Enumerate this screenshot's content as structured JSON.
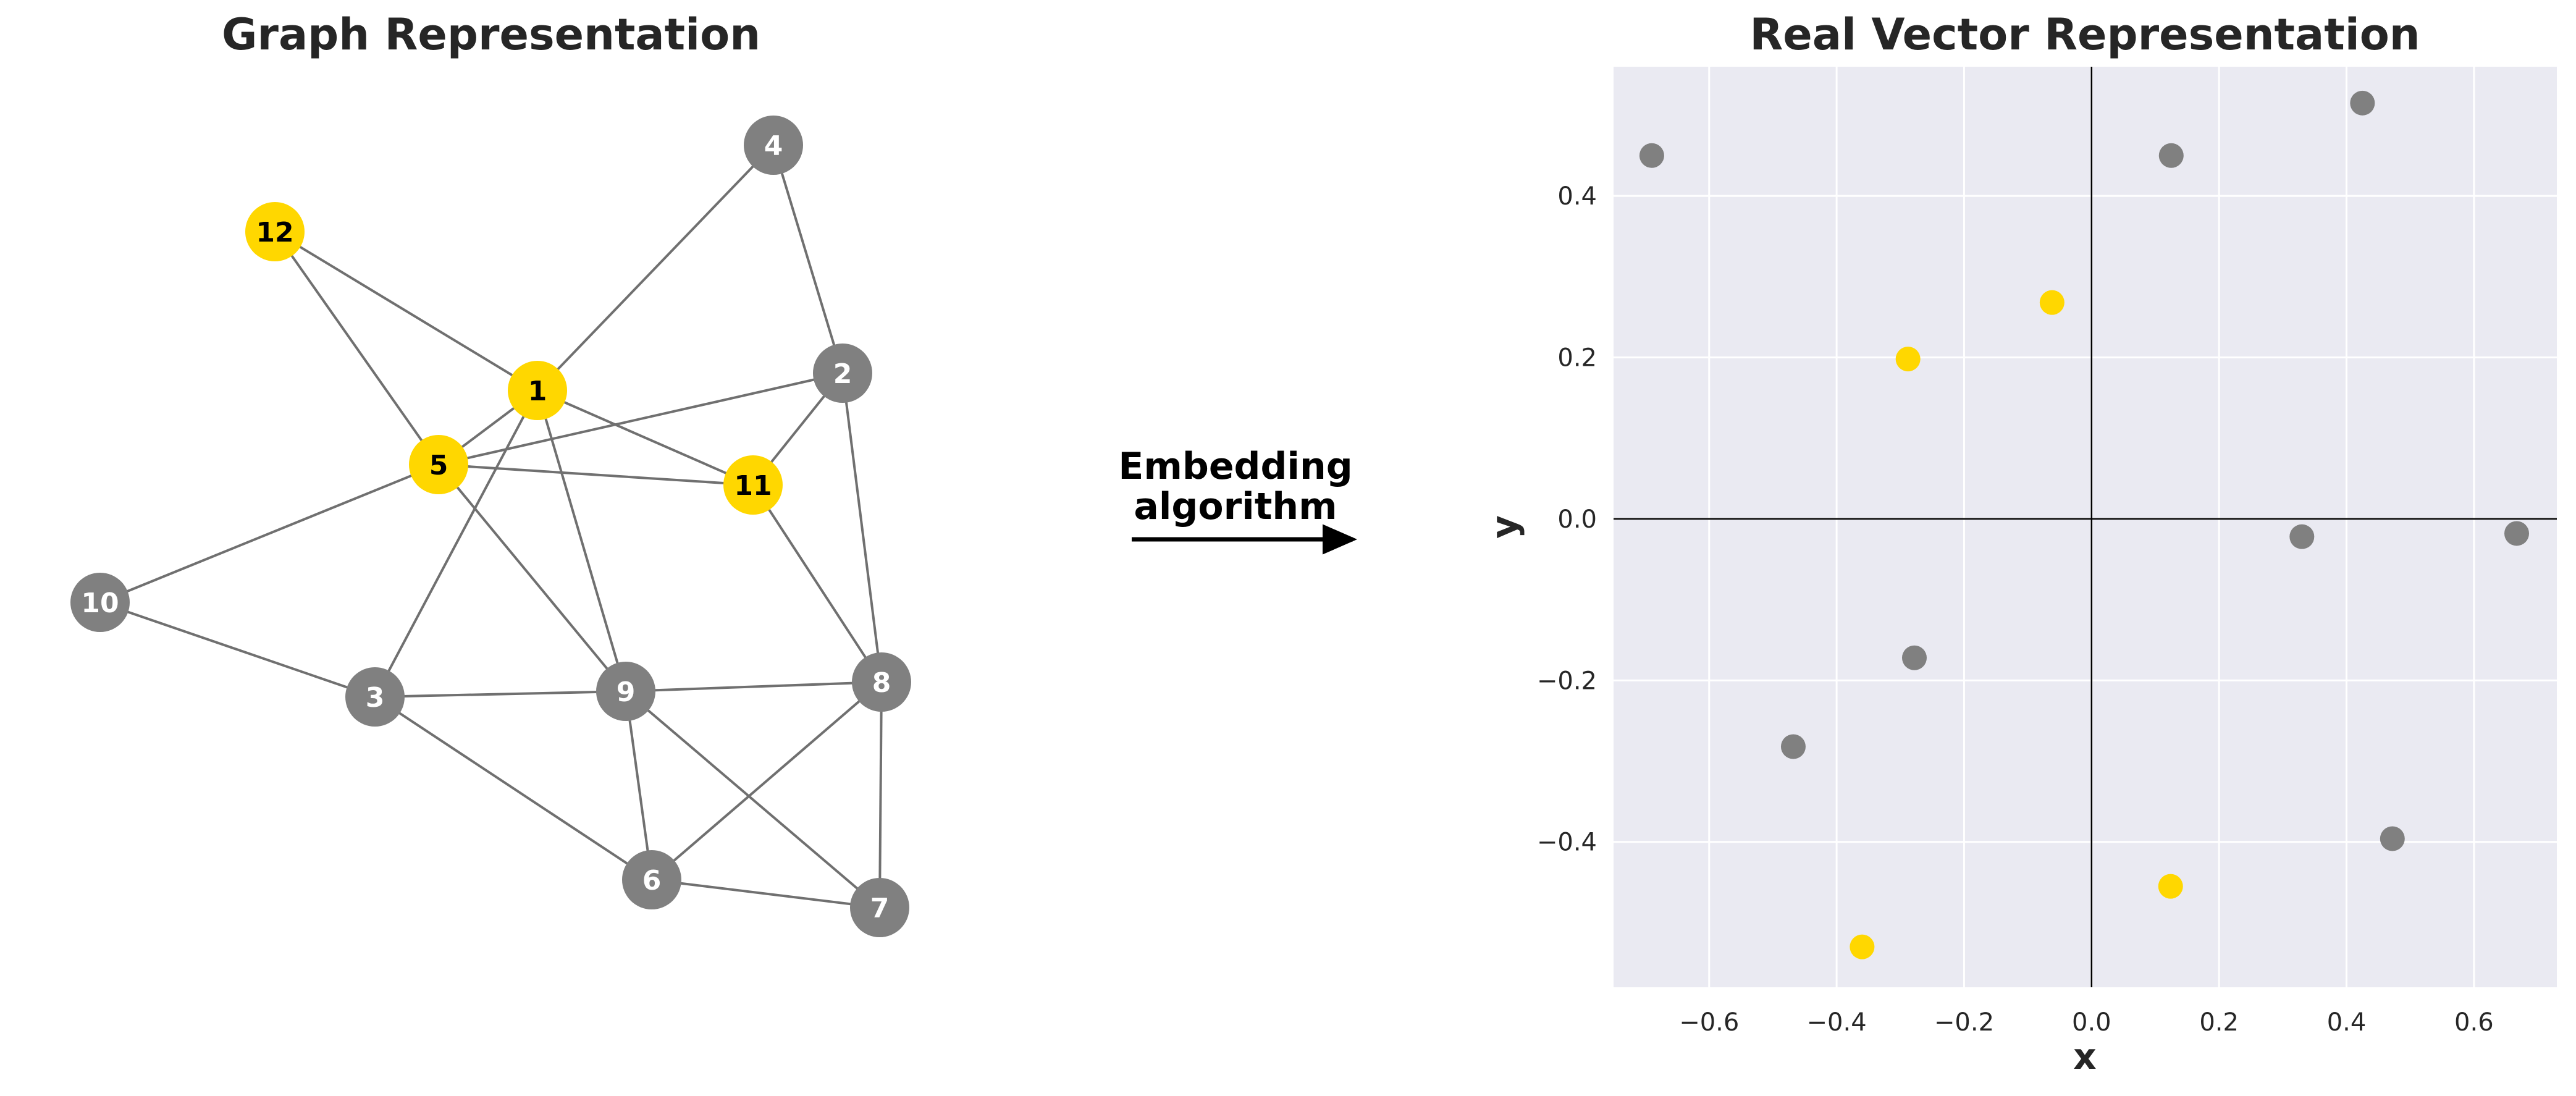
{
  "graph_panel": {
    "title": "Graph Representation",
    "nodes": [
      {
        "id": "1",
        "highlighted": true
      },
      {
        "id": "2",
        "highlighted": false
      },
      {
        "id": "3",
        "highlighted": false
      },
      {
        "id": "4",
        "highlighted": false
      },
      {
        "id": "5",
        "highlighted": true
      },
      {
        "id": "6",
        "highlighted": false
      },
      {
        "id": "7",
        "highlighted": false
      },
      {
        "id": "8",
        "highlighted": false
      },
      {
        "id": "9",
        "highlighted": false
      },
      {
        "id": "10",
        "highlighted": false
      },
      {
        "id": "11",
        "highlighted": true
      },
      {
        "id": "12",
        "highlighted": true
      }
    ],
    "edges": [
      [
        "12",
        "1"
      ],
      [
        "12",
        "5"
      ],
      [
        "4",
        "1"
      ],
      [
        "4",
        "2"
      ],
      [
        "1",
        "5"
      ],
      [
        "1",
        "11"
      ],
      [
        "1",
        "3"
      ],
      [
        "1",
        "9"
      ],
      [
        "5",
        "2"
      ],
      [
        "5",
        "11"
      ],
      [
        "5",
        "10"
      ],
      [
        "5",
        "9"
      ],
      [
        "2",
        "11"
      ],
      [
        "2",
        "8"
      ],
      [
        "11",
        "8"
      ],
      [
        "10",
        "3"
      ],
      [
        "3",
        "9"
      ],
      [
        "3",
        "6"
      ],
      [
        "9",
        "8"
      ],
      [
        "9",
        "6"
      ],
      [
        "9",
        "7"
      ],
      [
        "8",
        "6"
      ],
      [
        "8",
        "7"
      ],
      [
        "6",
        "7"
      ]
    ]
  },
  "arrow_label": {
    "line1": "Embedding",
    "line2": "algorithm"
  },
  "chart_data": {
    "type": "scatter",
    "title": "Real Vector Representation",
    "xlabel": "x",
    "ylabel": "y",
    "xlim": [
      -0.75,
      0.73
    ],
    "ylim": [
      -0.58,
      0.56
    ],
    "xticks": [
      -0.6,
      -0.4,
      -0.2,
      0.0,
      0.2,
      0.4,
      0.6
    ],
    "yticks": [
      -0.4,
      -0.2,
      0.0,
      0.2,
      0.4
    ],
    "grid": true,
    "points": [
      {
        "x": -0.69,
        "y": 0.45,
        "highlighted": false
      },
      {
        "x": 0.125,
        "y": 0.45,
        "highlighted": false
      },
      {
        "x": 0.425,
        "y": 0.515,
        "highlighted": false
      },
      {
        "x": -0.062,
        "y": 0.268,
        "highlighted": true
      },
      {
        "x": -0.288,
        "y": 0.198,
        "highlighted": true
      },
      {
        "x": 0.33,
        "y": -0.022,
        "highlighted": false
      },
      {
        "x": 0.667,
        "y": -0.018,
        "highlighted": false
      },
      {
        "x": -0.278,
        "y": -0.172,
        "highlighted": false
      },
      {
        "x": -0.468,
        "y": -0.282,
        "highlighted": false
      },
      {
        "x": 0.472,
        "y": -0.396,
        "highlighted": false
      },
      {
        "x": 0.124,
        "y": -0.455,
        "highlighted": true
      },
      {
        "x": -0.36,
        "y": -0.53,
        "highlighted": true
      }
    ]
  },
  "colors": {
    "highlight": "#FFD700",
    "node": "#808080",
    "edge": "#707070",
    "plot_background": "#EAEAF2",
    "grid": "#FFFFFF",
    "text": "#262626"
  }
}
